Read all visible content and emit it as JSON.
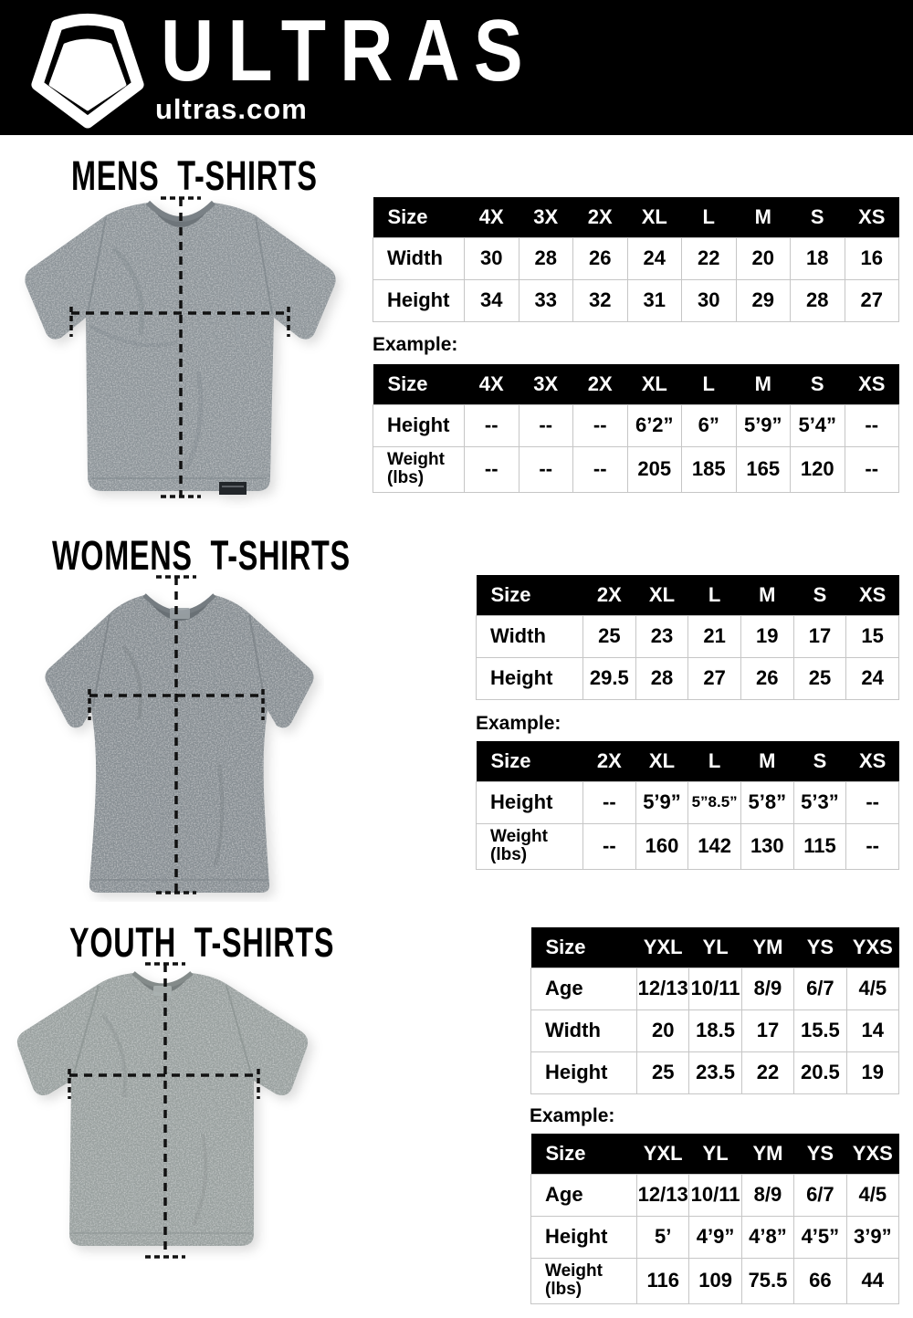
{
  "colors": {
    "header_bg": "#000000",
    "table_header_bg": "#000000",
    "table_border": "#c6c6c6",
    "shirt_gray_mens": "#8d9499",
    "shirt_gray_womens": "#878e93",
    "shirt_gray_youth": "#99a09f",
    "text": "#000000"
  },
  "header": {
    "brand": "ULTRAS",
    "site": "ultras.com"
  },
  "sections": {
    "mens": {
      "title": "MENS T-SHIRTS",
      "example_label": "Example:",
      "size_table": {
        "columns": [
          "Size",
          "4X",
          "3X",
          "2X",
          "XL",
          "L",
          "M",
          "S",
          "XS"
        ],
        "rows": [
          {
            "label": "Width",
            "values": [
              "30",
              "28",
              "26",
              "24",
              "22",
              "20",
              "18",
              "16"
            ]
          },
          {
            "label": "Height",
            "values": [
              "34",
              "33",
              "32",
              "31",
              "30",
              "29",
              "28",
              "27"
            ]
          }
        ]
      },
      "example_table": {
        "columns": [
          "Size",
          "4X",
          "3X",
          "2X",
          "XL",
          "L",
          "M",
          "S",
          "XS"
        ],
        "rows": [
          {
            "label": "Height",
            "values": [
              "--",
              "--",
              "--",
              "6’2”",
              "6”",
              "5’9”",
              "5’4”",
              "--"
            ]
          },
          {
            "label": "Weight",
            "label2": "(lbs)",
            "values": [
              "--",
              "--",
              "--",
              "205",
              "185",
              "165",
              "120",
              "--"
            ]
          }
        ]
      }
    },
    "womens": {
      "title": "WOMENS T-SHIRTS",
      "example_label": "Example:",
      "size_table": {
        "columns": [
          "Size",
          "2X",
          "XL",
          "L",
          "M",
          "S",
          "XS"
        ],
        "rows": [
          {
            "label": "Width",
            "values": [
              "25",
              "23",
              "21",
              "19",
              "17",
              "15"
            ]
          },
          {
            "label": "Height",
            "values": [
              "29.5",
              "28",
              "27",
              "26",
              "25",
              "24"
            ]
          }
        ]
      },
      "example_table": {
        "columns": [
          "Size",
          "2X",
          "XL",
          "L",
          "M",
          "S",
          "XS"
        ],
        "rows": [
          {
            "label": "Height",
            "values": [
              "--",
              "5’9”",
              "5”8.5”",
              "5’8”",
              "5’3”",
              "--"
            ]
          },
          {
            "label": "Weight",
            "label2": "(lbs)",
            "values": [
              "--",
              "160",
              "142",
              "130",
              "115",
              "--"
            ]
          }
        ]
      }
    },
    "youth": {
      "title": "YOUTH T-SHIRTS",
      "example_label": "Example:",
      "size_table": {
        "columns": [
          "Size",
          "YXL",
          "YL",
          "YM",
          "YS",
          "YXS"
        ],
        "rows": [
          {
            "label": "Age",
            "values": [
              "12/13",
              "10/11",
              "8/9",
              "6/7",
              "4/5"
            ]
          },
          {
            "label": "Width",
            "values": [
              "20",
              "18.5",
              "17",
              "15.5",
              "14"
            ]
          },
          {
            "label": "Height",
            "values": [
              "25",
              "23.5",
              "22",
              "20.5",
              "19"
            ]
          }
        ]
      },
      "example_table": {
        "columns": [
          "Size",
          "YXL",
          "YL",
          "YM",
          "YS",
          "YXS"
        ],
        "rows": [
          {
            "label": "Age",
            "values": [
              "12/13",
              "10/11",
              "8/9",
              "6/7",
              "4/5"
            ]
          },
          {
            "label": "Height",
            "values": [
              "5’",
              "4’9”",
              "4’8”",
              "4’5”",
              "3’9”"
            ]
          },
          {
            "label": "Weight",
            "label2": "(lbs)",
            "values": [
              "116",
              "109",
              "75.5",
              "66",
              "44"
            ]
          }
        ]
      }
    }
  }
}
